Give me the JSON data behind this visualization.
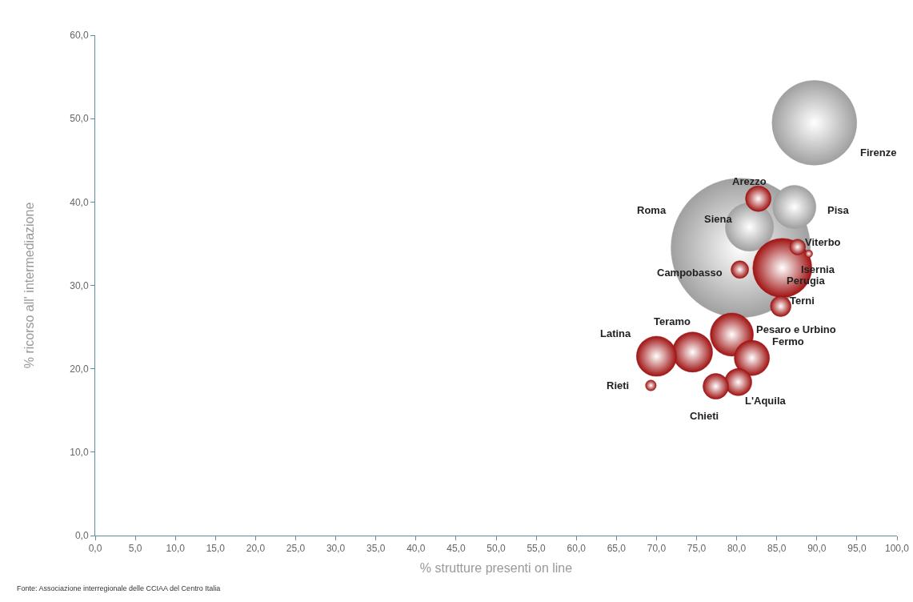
{
  "chart_data": {
    "type": "bubble",
    "xlabel": "% strutture presenti on line",
    "ylabel": "% ricorso all' intermediazione",
    "xlim": [
      0,
      100
    ],
    "xticks": [
      {
        "value": 0,
        "label": "0,0"
      },
      {
        "value": 5,
        "label": "5,0"
      },
      {
        "value": 10,
        "label": "10,0"
      },
      {
        "value": 15,
        "label": "15,0"
      },
      {
        "value": 20,
        "label": "20,0"
      },
      {
        "value": 25,
        "label": "25,0"
      },
      {
        "value": 30,
        "label": "30,0"
      },
      {
        "value": 35,
        "label": "35,0"
      },
      {
        "value": 40,
        "label": "40,0"
      },
      {
        "value": 45,
        "label": "45,0"
      },
      {
        "value": 50,
        "label": "50,0"
      },
      {
        "value": 55,
        "label": "55,0"
      },
      {
        "value": 60,
        "label": "60,0"
      },
      {
        "value": 65,
        "label": "65,0"
      },
      {
        "value": 70,
        "label": "70,0"
      },
      {
        "value": 75,
        "label": "75,0"
      },
      {
        "value": 80,
        "label": "80,0"
      },
      {
        "value": 85,
        "label": "85,0"
      },
      {
        "value": 90,
        "label": "90,0"
      },
      {
        "value": 95,
        "label": "95,0"
      },
      {
        "value": 100,
        "label": "100,0"
      }
    ],
    "ylim": [
      0,
      60
    ],
    "yticks": [
      {
        "value": 0,
        "label": "0,0"
      },
      {
        "value": 10,
        "label": "10,0"
      },
      {
        "value": 20,
        "label": "20,0"
      },
      {
        "value": 30,
        "label": "30,0"
      },
      {
        "value": 40,
        "label": "40,0"
      },
      {
        "value": 50,
        "label": "50,0"
      },
      {
        "value": 60,
        "label": "60,0"
      }
    ],
    "grid": false,
    "legend": false,
    "series": [
      {
        "name": "Roma",
        "color": "#a0a0a0",
        "x": [
          80.5
        ],
        "values": [
          34.5
        ],
        "sizes": [
          1
        ]
      },
      {
        "name": "Firenze",
        "color": "#a0a0a0",
        "x": [
          89.7
        ],
        "values": [
          49.5
        ],
        "sizes": [
          0.37
        ]
      },
      {
        "name": "Siena",
        "color": "#a0a0a0",
        "x": [
          81.6
        ],
        "values": [
          37.0
        ],
        "sizes": [
          0.12
        ]
      },
      {
        "name": "Pisa",
        "color": "#a0a0a0",
        "x": [
          87.2
        ],
        "values": [
          39.4
        ],
        "sizes": [
          0.096
        ]
      },
      {
        "name": "Arezzo",
        "color": "#a01212",
        "x": [
          82.7
        ],
        "values": [
          40.4
        ],
        "sizes": [
          0.034
        ]
      },
      {
        "name": "Perugia",
        "color": "#a01212",
        "x": [
          85.7
        ],
        "values": [
          32.1
        ],
        "sizes": [
          0.18
        ]
      },
      {
        "name": "Viterbo",
        "color": "#a01212",
        "x": [
          87.6
        ],
        "values": [
          34.6
        ],
        "sizes": [
          0.013
        ]
      },
      {
        "name": "Isernia",
        "color": "#a01212",
        "x": [
          89.0
        ],
        "values": [
          33.8
        ],
        "sizes": [
          0.003
        ]
      },
      {
        "name": "Campobasso",
        "color": "#a01212",
        "x": [
          80.4
        ],
        "values": [
          31.9
        ],
        "sizes": [
          0.016
        ]
      },
      {
        "name": "Terni",
        "color": "#a01212",
        "x": [
          85.5
        ],
        "values": [
          27.5
        ],
        "sizes": [
          0.022
        ]
      },
      {
        "name": "Pesaro e Urbino",
        "color": "#a01212",
        "x": [
          79.4
        ],
        "values": [
          24.1
        ],
        "sizes": [
          0.096
        ]
      },
      {
        "name": "Fermo",
        "color": "#a01212",
        "x": [
          81.9
        ],
        "values": [
          21.3
        ],
        "sizes": [
          0.064
        ]
      },
      {
        "name": "Teramo",
        "color": "#a01212",
        "x": [
          74.5
        ],
        "values": [
          22.0
        ],
        "sizes": [
          0.083
        ]
      },
      {
        "name": "Latina",
        "color": "#a01212",
        "x": [
          70.0
        ],
        "values": [
          21.5
        ],
        "sizes": [
          0.083
        ]
      },
      {
        "name": "Rieti",
        "color": "#a01212",
        "x": [
          69.3
        ],
        "values": [
          18.0
        ],
        "sizes": [
          0.006
        ]
      },
      {
        "name": "L'Aquila",
        "color": "#a01212",
        "x": [
          80.2
        ],
        "values": [
          18.4
        ],
        "sizes": [
          0.038
        ]
      },
      {
        "name": "Chieti",
        "color": "#a01212",
        "x": [
          77.4
        ],
        "values": [
          17.9
        ],
        "sizes": [
          0.034
        ]
      }
    ],
    "annotations": [
      "Fonte: Associazione interregionale delle CCIAA del Centro Italia"
    ]
  }
}
